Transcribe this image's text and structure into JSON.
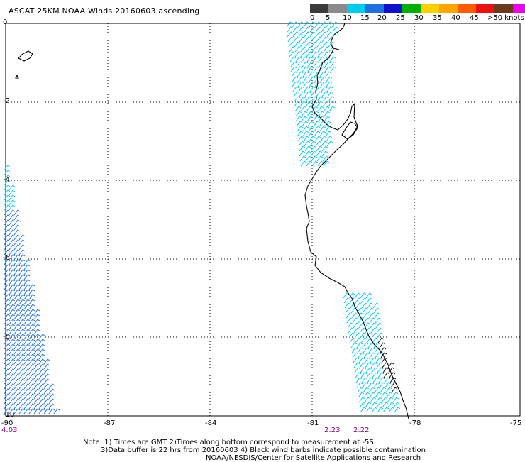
{
  "title": "ASCAT 25KM NOAA Winds 20160603 ascending",
  "legend": {
    "labels": [
      "0",
      "5",
      "10",
      "15",
      "20",
      "25",
      "30",
      "35",
      "40",
      "45",
      ">50 knots"
    ],
    "colors": [
      "#3a3a3a",
      "#8a8a8a",
      "#00ccee",
      "#1e6fe0",
      "#1010d0",
      "#00b000",
      "#ffd000",
      "#ffa500",
      "#ff5a00",
      "#ee1010",
      "#6b3a1a",
      "#ee00ee",
      "#5a1a9a"
    ]
  },
  "axes": {
    "y_labels": [
      "0",
      "-2",
      "-4",
      "-6",
      "-8",
      "-10"
    ],
    "x_labels": [
      "-90",
      "-87",
      "-84",
      "-81",
      "-78",
      "-75"
    ]
  },
  "times": [
    "4:03",
    "2:23",
    "2:22"
  ],
  "note": {
    "line1": "Note: 1) Times are GMT 2)Times along bottom correspond to measurement at -5S",
    "line2": "3)Data buffer is 22 hrs from 20160603 4) Black wind barbs indicate possible contamination",
    "line3": "NOAA/NESDIS/Center for Satellite Applications and Research"
  },
  "colors": {
    "wind_light": "#00ccee",
    "wind_mid": "#1e6fe0",
    "contaminated": "#000000",
    "time_label": "#7a0a7a"
  }
}
